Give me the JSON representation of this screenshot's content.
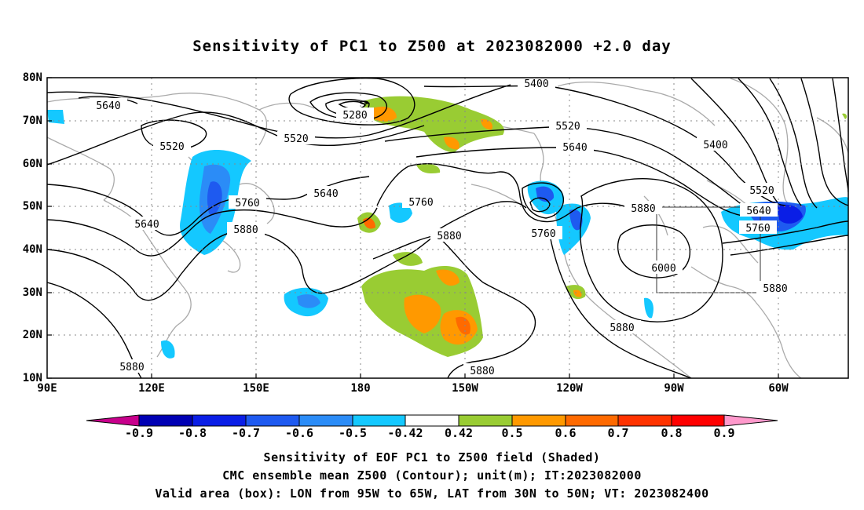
{
  "title": "Sensitivity of PC1 to Z500 at 2023082000 +2.0 day",
  "lat_labels": [
    "80N",
    "70N",
    "60N",
    "50N",
    "40N",
    "30N",
    "20N",
    "10N"
  ],
  "lon_labels": [
    "90E",
    "120E",
    "150E",
    "180",
    "150W",
    "120W",
    "90W",
    "60W"
  ],
  "colorbar": {
    "labels": [
      "-0.9",
      "-0.8",
      "-0.7",
      "-0.6",
      "-0.5",
      "-0.42",
      "0.42",
      "0.5",
      "0.6",
      "0.7",
      "0.8",
      "0.9"
    ],
    "colors": [
      "#c8008c",
      "#0000b4",
      "#0a1ee6",
      "#1e5af0",
      "#2b8cf7",
      "#14c8ff",
      "#ffffff",
      "#99cc33",
      "#ff9900",
      "#ff6a00",
      "#ff3300",
      "#ff0000",
      "#ff99cc"
    ]
  },
  "contour_labels": [
    "5400",
    "5280",
    "5520",
    "5640",
    "5520",
    "5640",
    "5520",
    "5760",
    "5880",
    "5640",
    "5640",
    "5760",
    "5880",
    "5760",
    "5760",
    "5880",
    "5880",
    "6000",
    "5880",
    "5880",
    "5880",
    "5400",
    "5520",
    "5640",
    "5760",
    "5880"
  ],
  "captions": [
    "Sensitivity of EOF PC1 to Z500 field (Shaded)",
    "CMC ensemble mean Z500 (Contour); unit(m); IT:2023082000",
    "Valid area (box): LON from 95W to 65W, LAT from 30N to 50N; VT: 2023082400"
  ],
  "map": {
    "lon_range": [
      "90E",
      "48W"
    ],
    "lat_range": [
      "10N",
      "80N"
    ],
    "valid_box": {
      "lon_west": "95W",
      "lon_east": "65W",
      "lat_south": "30N",
      "lat_north": "50N"
    }
  }
}
